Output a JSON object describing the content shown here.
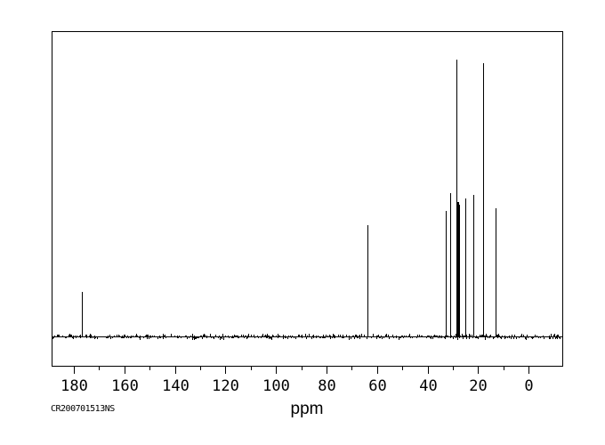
{
  "colors": {
    "ink": "#000000",
    "background": "#ffffff"
  },
  "annotation": "CR200701513NS",
  "chart_data": {
    "type": "line",
    "subtype": "nmr-carbon-13-spectrum",
    "title": "",
    "xlabel": "ppm",
    "ylabel": "",
    "grid": false,
    "legend": false,
    "annotation": "CR200701513NS",
    "x_axis": {
      "unit": "ppm",
      "inverted": true,
      "range_left_ppm": 188.8,
      "range_right_ppm": -13.3,
      "major_ticks": [
        180,
        160,
        140,
        120,
        100,
        80,
        60,
        40,
        20,
        0
      ],
      "minor_ticks": [
        170,
        150,
        130,
        110,
        90,
        70,
        50,
        30,
        10
      ]
    },
    "baseline": {
      "has_noise_band": true,
      "noise_amplitude_relative": 1.2
    },
    "peaks": [
      {
        "ppm": 177.0,
        "intensity": 16.1
      },
      {
        "ppm": 63.7,
        "intensity": 40.2
      },
      {
        "ppm": 32.9,
        "intensity": 45.3
      },
      {
        "ppm": 30.9,
        "intensity": 51.8
      },
      {
        "ppm": 28.5,
        "intensity": 100.0
      },
      {
        "ppm": 28.1,
        "intensity": 48.6
      },
      {
        "ppm": 27.75,
        "intensity": 48.6
      },
      {
        "ppm": 27.4,
        "intensity": 47.5
      },
      {
        "ppm": 25.0,
        "intensity": 49.8
      },
      {
        "ppm": 21.9,
        "intensity": 51.1
      },
      {
        "ppm": 17.9,
        "intensity": 98.6
      },
      {
        "ppm": 13.0,
        "intensity": 46.3
      }
    ]
  }
}
